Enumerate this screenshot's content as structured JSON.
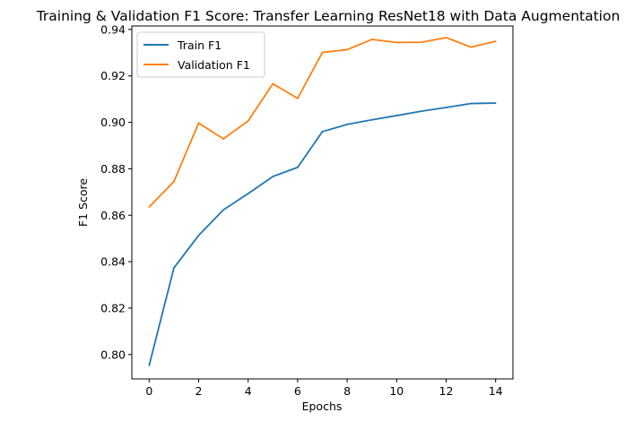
{
  "chart_data": {
    "type": "line",
    "title": "Training & Validation F1 Score: Transfer Learning ResNet18 with Data Augmentation",
    "xlabel": "Epochs",
    "ylabel": "F1 Score",
    "x": [
      0,
      1,
      2,
      3,
      4,
      5,
      6,
      7,
      8,
      9,
      10,
      11,
      12,
      13,
      14
    ],
    "xlim": [
      -0.7,
      14.7
    ],
    "ylim": [
      0.7895,
      0.9415
    ],
    "xticks": [
      0,
      2,
      4,
      6,
      8,
      10,
      12,
      14
    ],
    "xtick_labels": [
      "0",
      "2",
      "4",
      "6",
      "8",
      "10",
      "12",
      "14"
    ],
    "yticks": [
      0.8,
      0.82,
      0.84,
      0.86,
      0.88,
      0.9,
      0.92,
      0.94
    ],
    "ytick_labels": [
      "0.80",
      "0.82",
      "0.84",
      "0.86",
      "0.88",
      "0.90",
      "0.92",
      "0.94"
    ],
    "grid": false,
    "legend_position": "top-left",
    "series": [
      {
        "name": "Train F1",
        "color": "#1f77b4",
        "values": [
          0.7953,
          0.8373,
          0.8513,
          0.8623,
          0.8693,
          0.8767,
          0.8806,
          0.896,
          0.8991,
          0.9011,
          0.9029,
          0.9048,
          0.9064,
          0.9081,
          0.9083
        ]
      },
      {
        "name": "Validation F1",
        "color": "#ff7f0e",
        "values": [
          0.8635,
          0.8745,
          0.8997,
          0.8929,
          0.9006,
          0.9166,
          0.9103,
          0.9301,
          0.9313,
          0.9357,
          0.9344,
          0.9345,
          0.9365,
          0.9324,
          0.9349
        ]
      }
    ]
  }
}
